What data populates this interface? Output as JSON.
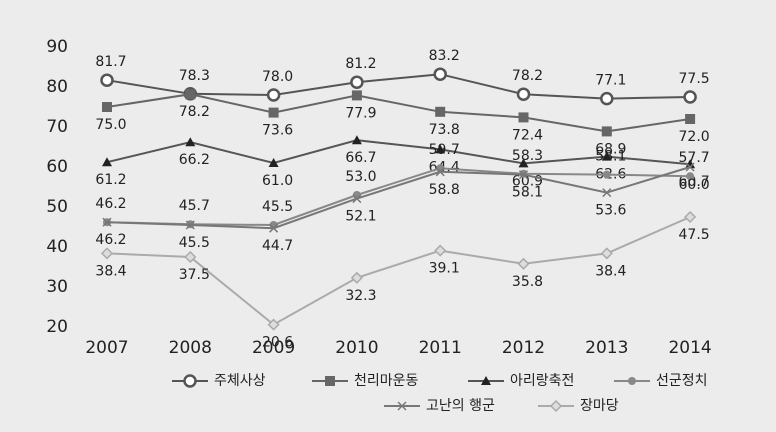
{
  "chart_data": {
    "type": "line",
    "categories": [
      "2007",
      "2008",
      "2009",
      "2010",
      "2011",
      "2012",
      "2013",
      "2014"
    ],
    "ylim": [
      20,
      90
    ],
    "yticks": [
      20,
      30,
      40,
      50,
      60,
      70,
      80,
      90
    ],
    "grid": false,
    "series": [
      {
        "name": "주체사상",
        "color": "#555555",
        "marker": "open-circle",
        "values": [
          81.7,
          78.3,
          78.0,
          81.2,
          83.2,
          78.2,
          77.1,
          77.5
        ],
        "value_labels": [
          "81.7",
          "78.3",
          "78.0",
          "81.2",
          "83.2",
          "78.2",
          "77.1",
          "77.5"
        ]
      },
      {
        "name": "천리마운동",
        "color": "#666666",
        "marker": "square",
        "values": [
          75.0,
          78.2,
          73.6,
          77.9,
          73.8,
          72.4,
          68.9,
          72.0
        ],
        "value_labels": [
          "75.0",
          "78.2",
          "73.6",
          "77.9",
          "73.8",
          "72.4",
          "68.9",
          "72.0"
        ]
      },
      {
        "name": "아리랑축전",
        "color": "#555555",
        "marker": "triangle",
        "values": [
          61.2,
          66.2,
          61.0,
          66.7,
          64.4,
          60.9,
          62.6,
          60.7
        ],
        "value_labels": [
          "61.2",
          "66.2",
          "61.0",
          "66.7",
          "64.4",
          "60.9",
          "62.6",
          "60.7"
        ]
      },
      {
        "name": "선군정치",
        "color": "#888888",
        "marker": "circle",
        "values": [
          46.2,
          45.7,
          45.5,
          53.0,
          59.7,
          58.3,
          58.1,
          57.7
        ],
        "value_labels": [
          "46.2",
          "45.7",
          "45.5",
          "53.0",
          "59.7",
          "58.3",
          "58.1",
          "57.7"
        ]
      },
      {
        "name": "고난의 행군",
        "color": "#777777",
        "marker": "x",
        "values": [
          46.2,
          45.5,
          44.7,
          52.1,
          58.8,
          58.1,
          53.6,
          60.0
        ],
        "value_labels": [
          "46.2",
          "45.5",
          "44.7",
          "52.1",
          "58.8",
          "58.1",
          "53.6",
          "60.0"
        ]
      },
      {
        "name": "장마당",
        "color": "#aaaaaa",
        "marker": "diamond",
        "values": [
          38.4,
          37.5,
          20.6,
          32.3,
          39.1,
          35.8,
          38.4,
          47.5
        ],
        "value_labels": [
          "38.4",
          "37.5",
          "20.6",
          "32.3",
          "39.1",
          "35.8",
          "38.4",
          "47.5"
        ]
      }
    ]
  }
}
